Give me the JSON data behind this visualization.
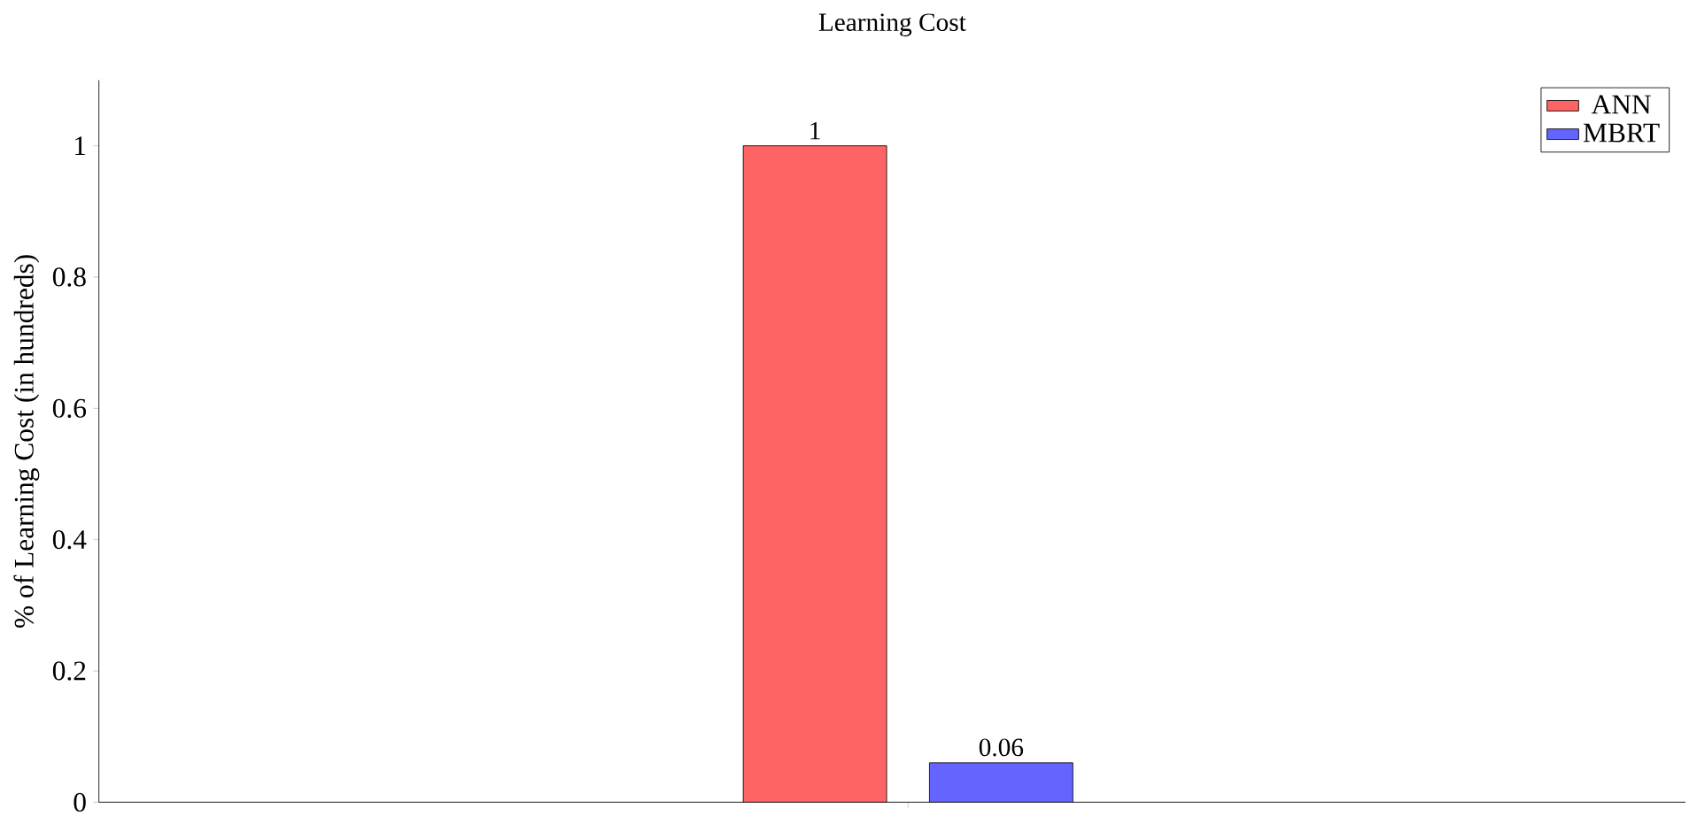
{
  "chart_data": {
    "type": "bar",
    "title": "Learning Cost",
    "ylabel": "% of Learning Cost (in hundreds)",
    "categories": [
      null
    ],
    "series": [
      {
        "name": "ANN",
        "color": "#ff6464",
        "values": [
          1
        ],
        "value_labels": [
          "1"
        ]
      },
      {
        "name": "MBRT",
        "color": "#6464ff",
        "values": [
          0.06
        ],
        "value_labels": [
          "0.06"
        ]
      }
    ],
    "ylim": [
      0,
      1.1
    ],
    "yticks": [
      0,
      0.2,
      0.4,
      0.6,
      0.8,
      1
    ],
    "legend": "top right"
  }
}
